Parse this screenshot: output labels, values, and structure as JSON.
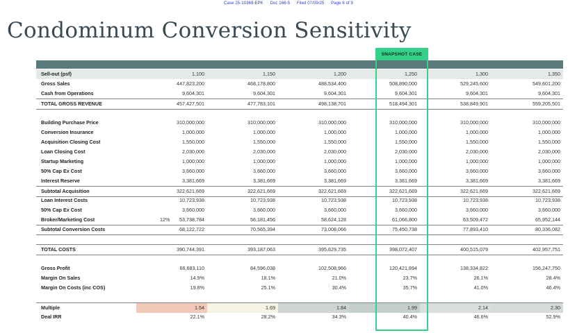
{
  "header": {
    "case": "Case 25-10369-EPK",
    "doc": "Doc 166-5",
    "filed": "Filed 07/09/25",
    "page": "Page 6 of 9"
  },
  "title": "Condominum Conversion Sensitivity",
  "snapshot_label": "SNAPSHOT CASE",
  "colors": {
    "band": "#587a7a",
    "snapshot": "#33d18a",
    "multiple_1": "#f2c9b8",
    "multiple_2": "#f6f3e4",
    "multiple_3": "#cfd6d1",
    "multiple_4": "#c6cfcb",
    "multiple_5": "#d9dede",
    "multiple_6": "#d6dbdb"
  },
  "rows": {
    "sellout": {
      "label": "Sell-out (psf)",
      "values": [
        "1,100",
        "1,150",
        "1,200",
        "1,250",
        "1,300",
        "1,350"
      ]
    },
    "gross_sales": {
      "label": "Gross Sales",
      "values": [
        "447,823,200",
        "468,178,800",
        "488,534,400",
        "508,890,000",
        "529,245,600",
        "549,601,200"
      ]
    },
    "cash_ops": {
      "label": "Cash from Operations",
      "values": [
        "9,604,301",
        "9,604,301",
        "9,604,301",
        "9,604,301",
        "9,604,301",
        "9,604,301"
      ]
    },
    "total_gross": {
      "label": "TOTAL GROSS REVENUE",
      "values": [
        "457,427,501",
        "477,783,101",
        "498,138,701",
        "518,494,301",
        "538,849,901",
        "559,205,501"
      ]
    },
    "purchase": {
      "label": "Building Purchase Price",
      "values": [
        "310,000,000",
        "310,000,000",
        "310,000,000",
        "310,000,000",
        "310,000,000",
        "310,000,000"
      ]
    },
    "conv_ins": {
      "label": "Conversion Insurance",
      "values": [
        "1,000,000",
        "1,000,000",
        "1,000,000",
        "1,000,000",
        "1,000,000",
        "1,000,000"
      ]
    },
    "acq_close": {
      "label": "Acquisition Closing Cost",
      "values": [
        "1,550,000",
        "1,550,000",
        "1,550,000",
        "1,550,000",
        "1,550,000",
        "1,550,000"
      ]
    },
    "loan_close": {
      "label": "Loan Closing Cost",
      "values": [
        "2,030,000",
        "2,030,000",
        "2,030,000",
        "2,030,000",
        "2,030,000",
        "2,030,000"
      ]
    },
    "startup": {
      "label": "Startup Marketing",
      "values": [
        "1,000,000",
        "1,000,000",
        "1,000,000",
        "1,000,000",
        "1,000,000",
        "1,000,000"
      ]
    },
    "capex1": {
      "label": "50% Cap Ex Cost",
      "values": [
        "3,660,000",
        "3,660,000",
        "3,660,000",
        "3,660,000",
        "3,660,000",
        "3,660,000"
      ]
    },
    "reserve": {
      "label": "Interest Reserve",
      "values": [
        "3,381,669",
        "3,381,669",
        "3,381,669",
        "3,381,669",
        "3,381,669",
        "3,381,669"
      ]
    },
    "sub_acq": {
      "label": "Subtotal Acquisition",
      "values": [
        "322,621,669",
        "322,621,669",
        "322,621,669",
        "322,621,669",
        "322,621,669",
        "322,621,669"
      ]
    },
    "loan_int": {
      "label": "Loan Interest Costs",
      "values": [
        "10,723,938",
        "10,723,938",
        "10,723,938",
        "10,723,938",
        "10,723,938",
        "10,723,938"
      ]
    },
    "capex2": {
      "label": "50% Cap Ex Cost",
      "values": [
        "3,660,000",
        "3,660,000",
        "3,660,000",
        "3,660,000",
        "3,660,000",
        "3,660,000"
      ]
    },
    "broker": {
      "label": "Broker/Marketing Cost",
      "pct": "12%",
      "values": [
        "53,738,784",
        "56,181,456",
        "58,624,128",
        "61,066,800",
        "63,509,472",
        "65,952,144"
      ]
    },
    "sub_conv": {
      "label": "Subtotal  Conversion Costs",
      "values": [
        "68,122,722",
        "70,565,394",
        "73,008,066",
        "75,450,738",
        "77,893,410",
        "80,336,082"
      ]
    },
    "total_costs": {
      "label": "TOTAL COSTS",
      "values": [
        "390,744,391",
        "393,187,063",
        "395,629,735",
        "398,072,407",
        "400,515,079",
        "402,957,751"
      ]
    },
    "gross_profit": {
      "label": "Gross Profit",
      "values": [
        "66,683,110",
        "84,596,038",
        "102,508,966",
        "120,421,894",
        "138,334,822",
        "156,247,750"
      ]
    },
    "margin_sales": {
      "label": "Margin On Sales",
      "values": [
        "14.9%",
        "18.1%",
        "21.0%",
        "23.7%",
        "26.1%",
        "28.4%"
      ]
    },
    "margin_costs": {
      "label": "Margin On Costs (inc COS)",
      "values": [
        "19.8%",
        "25.1%",
        "30.4%",
        "35.7%",
        "41.0%",
        "46.4%"
      ]
    },
    "multiple": {
      "label": "Multiple",
      "values": [
        "1.54",
        "1.69",
        "1.84",
        "1.99",
        "2.14",
        "2.30"
      ]
    },
    "irr": {
      "label": "Deal IRR",
      "values": [
        "22.1%",
        "28.2%",
        "34.3%",
        "40.4%",
        "46.6%",
        "52.9%"
      ]
    }
  }
}
